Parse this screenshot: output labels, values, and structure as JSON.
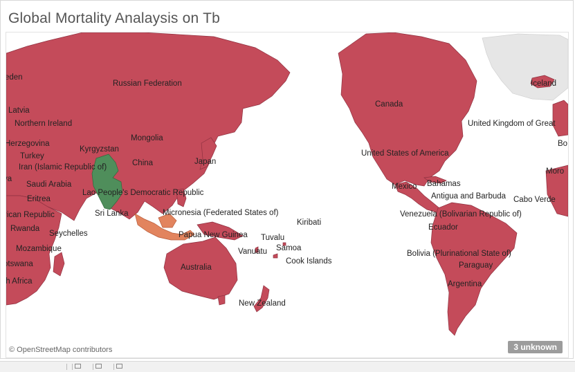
{
  "dashboard": {
    "title": "Global Mortality Analaysis on Tb",
    "attribution": "© OpenStreetMap contributors",
    "unknown_badge": "3 unknown"
  },
  "map": {
    "colors": {
      "default": "#c44b5a",
      "india": "#4f8e5b",
      "indonesia_region": "#e2845e",
      "unmatched": "#e6e6e6",
      "ocean": "#ffffff"
    },
    "labels": [
      "eden",
      "Russian Federation",
      "Latvia",
      "Northern Ireland",
      "Herzegovina",
      "Turkey",
      "Kyrgyzstan",
      "Mongolia",
      "Iran (Islamic Republic of)",
      "China",
      "Japan",
      "Saudi Arabia",
      "ya",
      "Lao People's Democratic Republic",
      "Eritrea",
      "Sri Lanka",
      "rican Republic",
      "Micronesia (Federated States of)",
      "Rwanda",
      "Seychelles",
      "Papua New Guinea",
      "Kiribati",
      "Tuvalu",
      "Mozambique",
      "Vanuatu",
      "Samoa",
      "otswana",
      "Cook Islands",
      "Australia",
      "th Africa",
      "New Zealand",
      "Canada",
      "Iceland",
      "United Kingdom of Great",
      "United States of America",
      "Bo",
      "Moro",
      "Mexico",
      "Bahamas",
      "Antigua and Barbuda",
      "Cabo Verde",
      "Venezuela (Bolivarian Republic of)",
      "Ecuador",
      "Bolivia (Plurinational State of)",
      "Paraguay",
      "Argentina"
    ]
  }
}
